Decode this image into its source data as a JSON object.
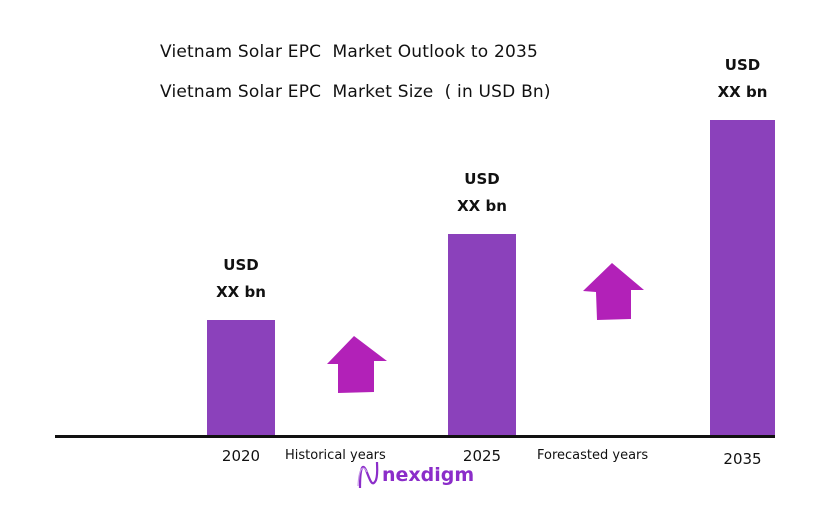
{
  "chart_data": {
    "type": "bar",
    "title": "Vietnam Solar EPC  Market Outlook to 2035",
    "subtitle": "Vietnam Solar EPC  Market Size  ( in USD Bn)",
    "categories": [
      "2020",
      "2025",
      "2035"
    ],
    "values": [
      37,
      64,
      100
    ],
    "data_labels": [
      [
        "USD",
        "XX bn"
      ],
      [
        "USD",
        "XX bn"
      ],
      [
        "USD",
        "XX bn"
      ]
    ],
    "annotations": [
      "Historical years",
      "Forecasted years"
    ],
    "grid": false,
    "bar_color": "#8B41BB",
    "arrow_color": "#B221B8"
  },
  "logo": {
    "text": "nexdigm",
    "color": "#8B2DC9"
  }
}
